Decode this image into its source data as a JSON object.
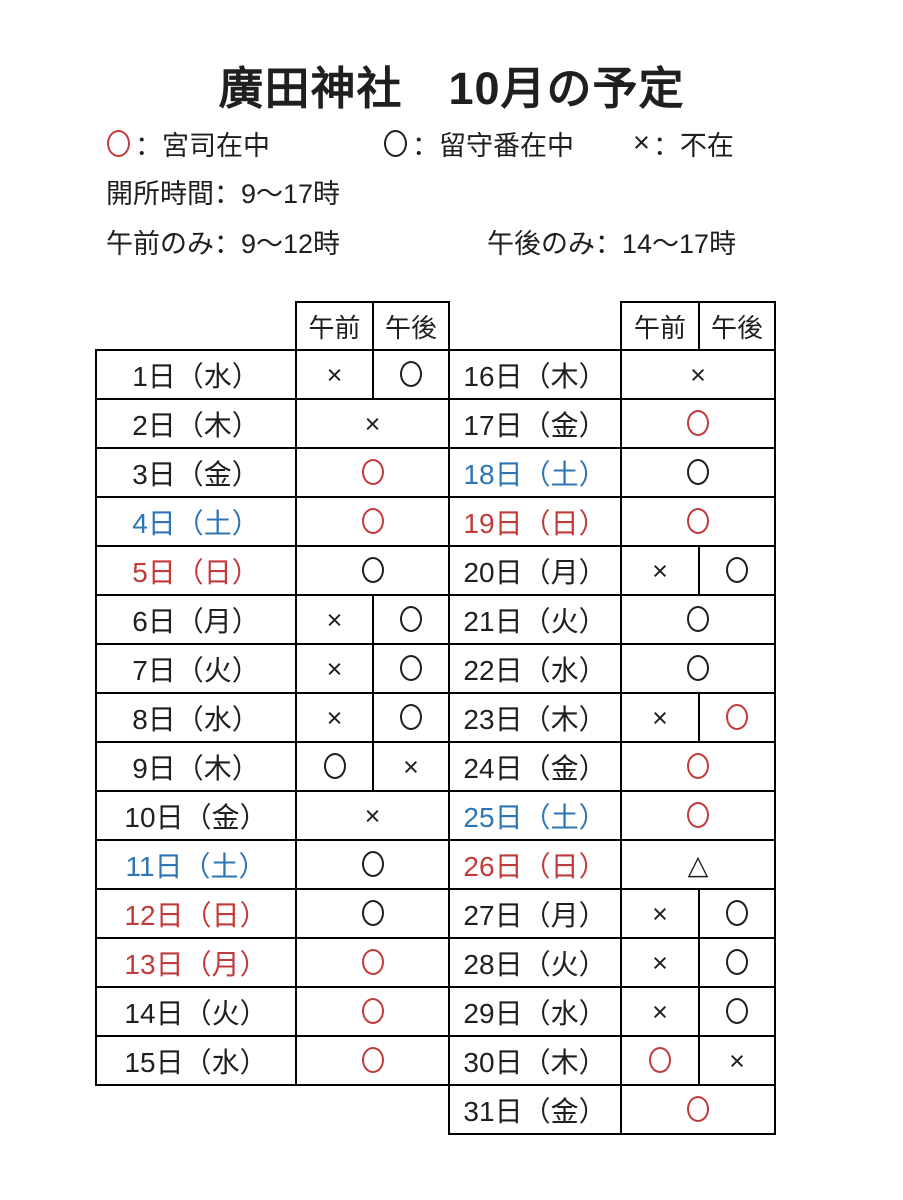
{
  "title": "廣田神社　10月の予定",
  "colors": {
    "red": "#c23b3b",
    "blue": "#2e75b6",
    "black": "#1f1f1f"
  },
  "symbols": {
    "x": "×",
    "triangle": "△",
    "circle": "○"
  },
  "legend": [
    {
      "symbol": "circle",
      "color": "red",
      "label": "：宮司在中"
    },
    {
      "symbol": "circle",
      "color": "black",
      "label": "：留守番在中"
    },
    {
      "symbol": "x",
      "color": "black",
      "label": "：不在"
    }
  ],
  "hours": {
    "open": "開所時間：9〜17時",
    "morning_only": "午前のみ：9〜12時",
    "afternoon_only": "午後のみ：14〜17時"
  },
  "col_headers": {
    "am": "午前",
    "pm": "午後"
  },
  "tables": [
    {
      "name": "left-schedule-table",
      "rows": [
        {
          "day": "1日（水）",
          "day_color": "black",
          "cells": [
            {
              "sym": "x",
              "color": "black"
            },
            {
              "sym": "circle",
              "color": "black"
            }
          ]
        },
        {
          "day": "2日（木）",
          "day_color": "black",
          "cells": [
            {
              "sym": "x",
              "color": "black",
              "span": 2
            }
          ]
        },
        {
          "day": "3日（金）",
          "day_color": "black",
          "cells": [
            {
              "sym": "circle",
              "color": "red",
              "span": 2
            }
          ]
        },
        {
          "day": "4日（土）",
          "day_color": "blue",
          "cells": [
            {
              "sym": "circle",
              "color": "red",
              "span": 2
            }
          ]
        },
        {
          "day": "5日（日）",
          "day_color": "red",
          "cells": [
            {
              "sym": "circle",
              "color": "black",
              "span": 2
            }
          ]
        },
        {
          "day": "6日（月）",
          "day_color": "black",
          "cells": [
            {
              "sym": "x",
              "color": "black"
            },
            {
              "sym": "circle",
              "color": "black"
            }
          ]
        },
        {
          "day": "7日（火）",
          "day_color": "black",
          "cells": [
            {
              "sym": "x",
              "color": "black"
            },
            {
              "sym": "circle",
              "color": "black"
            }
          ]
        },
        {
          "day": "8日（水）",
          "day_color": "black",
          "cells": [
            {
              "sym": "x",
              "color": "black"
            },
            {
              "sym": "circle",
              "color": "black"
            }
          ]
        },
        {
          "day": "9日（木）",
          "day_color": "black",
          "cells": [
            {
              "sym": "circle",
              "color": "black"
            },
            {
              "sym": "x",
              "color": "black"
            }
          ]
        },
        {
          "day": "10日（金）",
          "day_color": "black",
          "cells": [
            {
              "sym": "x",
              "color": "black",
              "span": 2
            }
          ]
        },
        {
          "day": "11日（土）",
          "day_color": "blue",
          "cells": [
            {
              "sym": "circle",
              "color": "black",
              "span": 2
            }
          ]
        },
        {
          "day": "12日（日）",
          "day_color": "red",
          "cells": [
            {
              "sym": "circle",
              "color": "black",
              "span": 2
            }
          ]
        },
        {
          "day": "13日（月）",
          "day_color": "red",
          "cells": [
            {
              "sym": "circle",
              "color": "red",
              "span": 2
            }
          ]
        },
        {
          "day": "14日（火）",
          "day_color": "black",
          "cells": [
            {
              "sym": "circle",
              "color": "red",
              "span": 2
            }
          ]
        },
        {
          "day": "15日（水）",
          "day_color": "black",
          "cells": [
            {
              "sym": "circle",
              "color": "red",
              "span": 2
            }
          ]
        }
      ]
    },
    {
      "name": "right-schedule-table",
      "rows": [
        {
          "day": "16日（木）",
          "day_color": "black",
          "cells": [
            {
              "sym": "x",
              "color": "black",
              "span": 2
            }
          ]
        },
        {
          "day": "17日（金）",
          "day_color": "black",
          "cells": [
            {
              "sym": "circle",
              "color": "red",
              "span": 2
            }
          ]
        },
        {
          "day": "18日（土）",
          "day_color": "blue",
          "cells": [
            {
              "sym": "circle",
              "color": "black",
              "span": 2
            }
          ]
        },
        {
          "day": "19日（日）",
          "day_color": "red",
          "cells": [
            {
              "sym": "circle",
              "color": "red",
              "span": 2
            }
          ]
        },
        {
          "day": "20日（月）",
          "day_color": "black",
          "cells": [
            {
              "sym": "x",
              "color": "black"
            },
            {
              "sym": "circle",
              "color": "black"
            }
          ]
        },
        {
          "day": "21日（火）",
          "day_color": "black",
          "cells": [
            {
              "sym": "circle",
              "color": "black",
              "span": 2
            }
          ]
        },
        {
          "day": "22日（水）",
          "day_color": "black",
          "cells": [
            {
              "sym": "circle",
              "color": "black",
              "span": 2
            }
          ]
        },
        {
          "day": "23日（木）",
          "day_color": "black",
          "cells": [
            {
              "sym": "x",
              "color": "black"
            },
            {
              "sym": "circle",
              "color": "red"
            }
          ]
        },
        {
          "day": "24日（金）",
          "day_color": "black",
          "cells": [
            {
              "sym": "circle",
              "color": "red",
              "span": 2
            }
          ]
        },
        {
          "day": "25日（土）",
          "day_color": "blue",
          "cells": [
            {
              "sym": "circle",
              "color": "red",
              "span": 2
            }
          ]
        },
        {
          "day": "26日（日）",
          "day_color": "red",
          "cells": [
            {
              "sym": "triangle",
              "color": "black",
              "span": 2
            }
          ]
        },
        {
          "day": "27日（月）",
          "day_color": "black",
          "cells": [
            {
              "sym": "x",
              "color": "black"
            },
            {
              "sym": "circle",
              "color": "black"
            }
          ]
        },
        {
          "day": "28日（火）",
          "day_color": "black",
          "cells": [
            {
              "sym": "x",
              "color": "black"
            },
            {
              "sym": "circle",
              "color": "black"
            }
          ]
        },
        {
          "day": "29日（水）",
          "day_color": "black",
          "cells": [
            {
              "sym": "x",
              "color": "black"
            },
            {
              "sym": "circle",
              "color": "black"
            }
          ]
        },
        {
          "day": "30日（木）",
          "day_color": "black",
          "cells": [
            {
              "sym": "circle",
              "color": "red"
            },
            {
              "sym": "x",
              "color": "black"
            }
          ]
        },
        {
          "day": "31日（金）",
          "day_color": "black",
          "cells": [
            {
              "sym": "circle",
              "color": "red",
              "span": 2
            }
          ]
        }
      ]
    }
  ]
}
